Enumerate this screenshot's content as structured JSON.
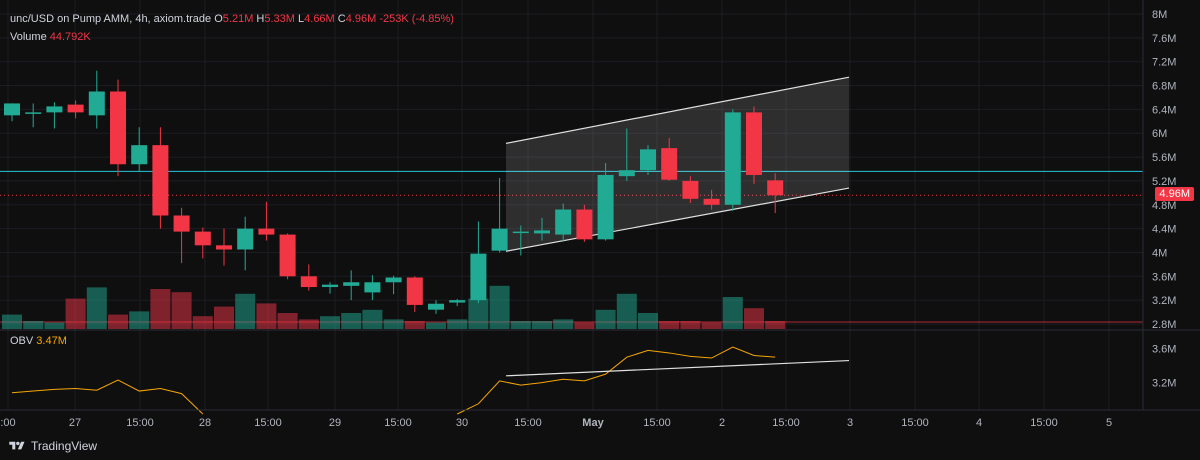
{
  "header": {
    "symbol": "unc/USD on Pump AMM, 4h, axiom.trade",
    "o_label": "O",
    "o_value": "5.21M",
    "h_label": "H",
    "h_value": "5.33M",
    "l_label": "L",
    "l_value": "4.66M",
    "c_label": "C",
    "c_value": "4.96M",
    "change": "-253K (-4.85%)",
    "volume_label": "Volume",
    "volume_value": "44.792K"
  },
  "obv": {
    "label": "OBV",
    "value": "3.47M"
  },
  "price_tag": "4.96M",
  "footer": {
    "brand": "TradingView"
  },
  "colors": {
    "up": "#22ab94",
    "down": "#f23645",
    "obv": "#f7a600",
    "hline": "#26c6da",
    "background": "#0f0f10"
  },
  "chart_data": [
    {
      "type": "candlestick",
      "title": "unc/USD on Pump AMM, 4h, axiom.trade",
      "y_ticks": [
        "8M",
        "7.6M",
        "7.2M",
        "6.8M",
        "6.4M",
        "6M",
        "5.6M",
        "5.2M",
        "4.8M",
        "4.4M",
        "4M",
        "3.6M",
        "3.2M",
        "2.8M"
      ],
      "ylim": [
        2.8,
        8.0
      ],
      "y_unit": "M",
      "x_ticks": [
        ":00",
        "27",
        "15:00",
        "28",
        "15:00",
        "29",
        "15:00",
        "30",
        "15:00",
        "May",
        "15:00",
        "2",
        "15:00",
        "3",
        "15:00",
        "4",
        "15:00",
        "5"
      ],
      "horizontal_line": 5.36,
      "last_price_line": 4.96,
      "channel": {
        "lower": [
          4.02,
          5.08
        ],
        "upper": [
          5.83,
          6.94
        ]
      },
      "candles": [
        {
          "o": 6.3,
          "h": 6.5,
          "l": 6.2,
          "c": 6.5,
          "v": 0.0
        },
        {
          "o": 6.35,
          "h": 6.5,
          "l": 6.1,
          "c": 6.35,
          "v": 0.0
        },
        {
          "o": 6.35,
          "h": 6.52,
          "l": 6.08,
          "c": 6.45,
          "v": 0.0
        },
        {
          "o": 6.48,
          "h": 6.55,
          "l": 6.25,
          "c": 6.35,
          "v": 0.0
        },
        {
          "o": 6.3,
          "h": 7.05,
          "l": 6.08,
          "c": 6.7,
          "v": 0.0
        },
        {
          "o": 6.7,
          "h": 6.9,
          "l": 5.28,
          "c": 5.48,
          "v": 0.0
        },
        {
          "o": 5.48,
          "h": 6.1,
          "l": 5.35,
          "c": 5.8,
          "v": 0.0
        },
        {
          "o": 5.8,
          "h": 6.1,
          "l": 4.4,
          "c": 4.62,
          "v": 0.0
        },
        {
          "o": 4.62,
          "h": 4.75,
          "l": 3.82,
          "c": 4.35,
          "v": 0.0
        },
        {
          "o": 4.35,
          "h": 4.42,
          "l": 3.9,
          "c": 4.12,
          "v": 0.0
        },
        {
          "o": 4.12,
          "h": 4.4,
          "l": 3.78,
          "c": 4.05,
          "v": 0.0
        },
        {
          "o": 4.05,
          "h": 4.6,
          "l": 3.7,
          "c": 4.4,
          "v": 0.0
        },
        {
          "o": 4.4,
          "h": 4.85,
          "l": 4.2,
          "c": 4.3,
          "v": 0.0
        },
        {
          "o": 4.3,
          "h": 4.32,
          "l": 3.55,
          "c": 3.6,
          "v": 0.0
        },
        {
          "o": 3.6,
          "h": 3.8,
          "l": 3.36,
          "c": 3.42,
          "v": 0.0
        },
        {
          "o": 3.42,
          "h": 3.5,
          "l": 3.31,
          "c": 3.46,
          "v": 0.0
        },
        {
          "o": 3.44,
          "h": 3.7,
          "l": 3.2,
          "c": 3.5,
          "v": 0.0
        },
        {
          "o": 3.33,
          "h": 3.62,
          "l": 3.2,
          "c": 3.5,
          "v": 0.0
        },
        {
          "o": 3.5,
          "h": 3.61,
          "l": 3.3,
          "c": 3.58,
          "v": 0.0
        },
        {
          "o": 3.58,
          "h": 3.6,
          "l": 3.0,
          "c": 3.12,
          "v": 0.0
        },
        {
          "o": 3.04,
          "h": 3.2,
          "l": 2.97,
          "c": 3.14,
          "v": 0.0
        },
        {
          "o": 3.16,
          "h": 3.22,
          "l": 3.1,
          "c": 3.2,
          "v": 0.0
        },
        {
          "o": 3.2,
          "h": 4.52,
          "l": 3.15,
          "c": 3.98,
          "v": 0.0
        },
        {
          "o": 4.03,
          "h": 5.25,
          "l": 4.0,
          "c": 4.4,
          "v": 0.0
        },
        {
          "o": 4.33,
          "h": 4.45,
          "l": 3.95,
          "c": 4.35,
          "v": 0.0
        },
        {
          "o": 4.32,
          "h": 4.58,
          "l": 4.2,
          "c": 4.37,
          "v": 0.0
        },
        {
          "o": 4.3,
          "h": 4.82,
          "l": 4.18,
          "c": 4.72,
          "v": 0.0
        },
        {
          "o": 4.72,
          "h": 4.8,
          "l": 4.18,
          "c": 4.22,
          "v": 0.0
        },
        {
          "o": 4.22,
          "h": 5.5,
          "l": 4.2,
          "c": 5.3,
          "v": 0.0
        },
        {
          "o": 5.28,
          "h": 6.08,
          "l": 5.2,
          "c": 5.38,
          "v": 0.0
        },
        {
          "o": 5.38,
          "h": 5.8,
          "l": 5.3,
          "c": 5.73,
          "v": 0.0
        },
        {
          "o": 5.75,
          "h": 5.92,
          "l": 5.2,
          "c": 5.22,
          "v": 0.0
        },
        {
          "o": 5.2,
          "h": 5.28,
          "l": 4.83,
          "c": 4.9,
          "v": 0.0
        },
        {
          "o": 4.9,
          "h": 5.05,
          "l": 4.72,
          "c": 4.8,
          "v": 0.0
        },
        {
          "o": 4.8,
          "h": 6.4,
          "l": 4.7,
          "c": 6.35,
          "v": 0.0
        },
        {
          "o": 6.35,
          "h": 6.45,
          "l": 5.15,
          "c": 5.3,
          "v": 0.0
        },
        {
          "o": 5.21,
          "h": 5.33,
          "l": 4.66,
          "c": 4.96,
          "v": 0.0
        }
      ],
      "volume": [
        0.9,
        0.5,
        0.4,
        1.9,
        2.6,
        0.9,
        1.1,
        2.5,
        2.3,
        0.8,
        1.4,
        2.2,
        1.6,
        1.0,
        0.6,
        0.8,
        1.0,
        1.2,
        0.6,
        0.5,
        0.4,
        0.6,
        1.9,
        2.7,
        0.5,
        0.5,
        0.6,
        0.4,
        1.2,
        2.2,
        1.0,
        0.5,
        0.5,
        0.4,
        2.0,
        1.3,
        0.5
      ]
    },
    {
      "type": "line",
      "title": "OBV",
      "y_ticks": [
        "3.6M",
        "3.2M"
      ],
      "ylim": [
        2.9,
        3.75
      ],
      "y_unit": "M",
      "series": [
        {
          "name": "OBV",
          "values": [
            3.08,
            3.1,
            3.12,
            3.13,
            3.11,
            3.23,
            3.1,
            3.13,
            3.07,
            2.9,
            2.9,
            2.9,
            2.9,
            2.9,
            2.9,
            2.9,
            2.9,
            2.9,
            2.9,
            2.9,
            2.9,
            2.9,
            2.95,
            3.22,
            3.17,
            3.2,
            3.24,
            3.22,
            3.3,
            3.5,
            3.58,
            3.55,
            3.51,
            3.49,
            3.62,
            3.52,
            3.5
          ]
        }
      ],
      "trendline": [
        3.28,
        3.46
      ]
    }
  ]
}
